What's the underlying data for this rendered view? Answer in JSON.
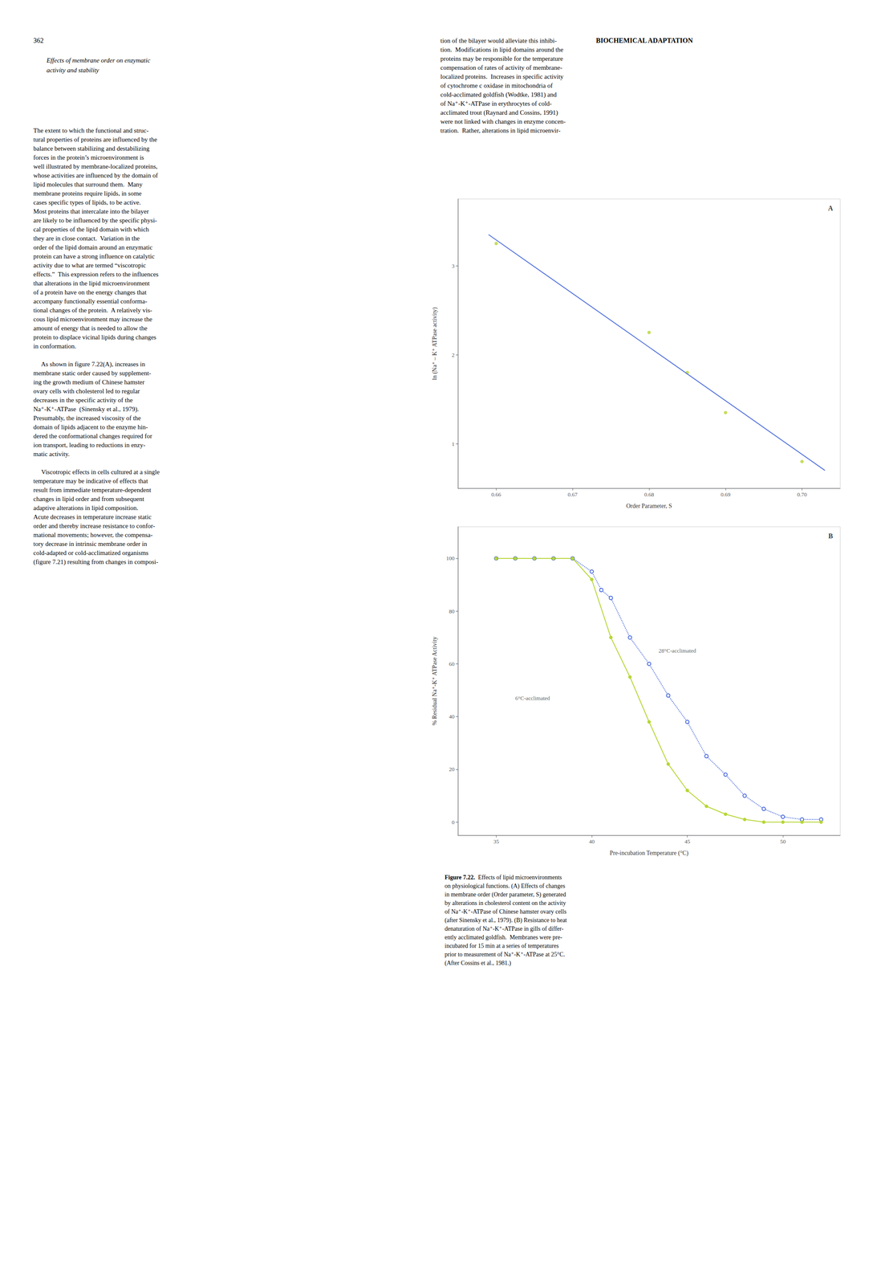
{
  "page": {
    "header_left": "362",
    "header_right": "BIOCHEMICAL ADAPTATION",
    "section_title": [
      "Effects of membrane order on enzymatic",
      "activity and stability"
    ],
    "left_body": [
      [
        "The extent to which the functional and struc-",
        "tural properties of proteins are influenced by the",
        "balance between stabilizing and destabilizing",
        "forces in the protein’s microenvironment is",
        "well illustrated by membrane-localized proteins,",
        "whose activities are influenced by the domain of",
        "lipid molecules that surround them.  Many",
        "membrane proteins require lipids, in some",
        "cases specific types of lipids, to be active.",
        "Most proteins that intercalate into the bilayer",
        "are likely to be influenced by the specific physi-",
        "cal properties of the lipid domain with which",
        "they are in close contact.  Variation in the",
        "order of the lipid domain around an enzymatic",
        "protein can have a strong influence on catalytic",
        "activity due to what are termed “viscotropic",
        "effects.”  This expression refers to the influences",
        "that alterations in the lipid microenvironment",
        "of a protein have on the energy changes that",
        "accompany functionally essential conforma-",
        "tional changes of the protein.  A relatively vis-",
        "cous lipid microenvironment may increase the",
        "amount of energy that is needed to allow the",
        "protein to displace vicinal lipids during changes",
        "in conformation."
      ],
      [
        "     As shown in figure 7.22(A), increases in",
        "membrane static order caused by supplement-",
        "ing the growth medium of Chinese hamster",
        "ovary cells with cholesterol led to regular",
        "decreases in the specific activity of the",
        "Na⁺-K⁺-ATPase  (Sinensky et al., 1979).",
        "Presumably, the increased viscosity of the",
        "domain of lipids adjacent to the enzyme hin-",
        "dered the conformational changes required for",
        "ion transport, leading to reductions in enzy-",
        "matic activity."
      ],
      [
        "     Viscotropic effects in cells cultured at a single",
        "temperature may be indicative of effects that",
        "result from immediate temperature-dependent",
        "changes in lipid order and from subsequent",
        "adaptive alterations in lipid composition.",
        "Acute decreases in temperature increase static",
        "order and thereby increase resistance to confor-",
        "mational movements; however, the compensa-",
        "tory decrease in intrinsic membrane order in",
        "cold-adapted or cold-acclimatized organisms",
        "(figure 7.21) resulting from changes in composi-"
      ]
    ],
    "right_body": [
      "tion of the bilayer would alleviate this inhibi-",
      "tion.  Modifications in lipid domains around the",
      "proteins may be responsible for the temperature",
      "compensation of rates of activity of membrane-",
      "localized proteins.  Increases in specific activity",
      "of cytochrome c oxidase in mitochondria of",
      "cold-acclimated goldfish (Wodtke, 1981) and",
      "of Na⁺-K⁺-ATPase in erythrocytes of cold-",
      "acclimated trout (Raynard and Cossins, 1991)",
      "were not linked with changes in enzyme concen-",
      "tration.  Rather, alterations in lipid microenvir-"
    ],
    "caption_bold": "Figure 7.22.",
    "caption": [
      "  Effects of lipid microenvironments",
      "on physiological functions. (A) Effects of changes",
      "in membrane order (Order parameter, S) generated",
      "by alterations in cholesterol content on the activity",
      "of Na⁺-K⁺-ATPase of Chinese hamster ovary cells",
      "(after Sinensky et al., 1979). (B) Resistance to heat",
      "denaturation of Na⁺-K⁺-ATPase in gills of differ-",
      "ently acclimated goldfish.  Membranes were pre-",
      "incubated for 15 min at a series of temperatures",
      "prior to measurement of Na⁺-K⁺-ATPase at 25°C.",
      "(After Cossins et al., 1981.)"
    ]
  },
  "chart_data": [
    {
      "type": "scatter",
      "title": "A",
      "xlabel": "Order Parameter, S",
      "ylabel": "ln (Na⁺ – K⁺ ATPase activity)",
      "xlim": [
        0.655,
        0.705
      ],
      "ylim": [
        0.5,
        3.75
      ],
      "xticks": [
        0.66,
        0.67,
        0.68,
        0.69,
        {
          "value": 0.7,
          "label": "0.70"
        }
      ],
      "yticks": [
        1,
        2,
        3
      ],
      "grid": false,
      "series": [
        {
          "type": "line",
          "line_style": "solid",
          "marker": "none",
          "x": [
            0.659,
            0.703
          ],
          "values": [
            3.35,
            0.7
          ]
        },
        {
          "type": "scatter",
          "marker": "circle",
          "x": [
            0.66,
            0.68,
            0.685,
            0.69,
            0.7
          ],
          "values": [
            3.25,
            2.25,
            1.8,
            1.35,
            0.8
          ]
        }
      ]
    },
    {
      "type": "line",
      "title": "B",
      "xlabel": "Pre-incubation Temperature (°C)",
      "ylabel": "% Residual Na⁺-K⁺ ATPase Activity",
      "xlim": [
        33,
        53
      ],
      "ylim": [
        -5,
        112
      ],
      "xticks": [
        35,
        40,
        45,
        50
      ],
      "yticks": [
        0,
        20,
        40,
        60,
        80,
        100
      ],
      "grid": false,
      "series": [
        {
          "type": "line",
          "line_style": "dotted",
          "marker": "open_circle",
          "x": [
            35,
            36,
            37,
            38,
            39,
            40,
            40.5,
            41,
            42,
            43,
            44,
            45,
            46,
            47,
            48,
            49,
            50,
            51,
            52
          ],
          "values": [
            100,
            100,
            100,
            100,
            100,
            95,
            88,
            85,
            70,
            60,
            48,
            38,
            25,
            18,
            10,
            5,
            2,
            1,
            1
          ]
        },
        {
          "type": "line",
          "line_style": "solid",
          "marker": "circle",
          "x": [
            35,
            36,
            37,
            38,
            39,
            40,
            41,
            42,
            43,
            44,
            45,
            46,
            47,
            48,
            49,
            50,
            51,
            52
          ],
          "values": [
            100,
            100,
            100,
            100,
            100,
            92,
            70,
            55,
            38,
            22,
            12,
            6,
            3,
            1,
            0,
            0,
            0,
            0
          ]
        }
      ],
      "annotations": [
        {
          "text": "28°C-acclimated",
          "x": 43.5,
          "y": 65
        },
        {
          "text": "6°C-acclimated",
          "x": 36,
          "y": 47
        }
      ]
    }
  ]
}
